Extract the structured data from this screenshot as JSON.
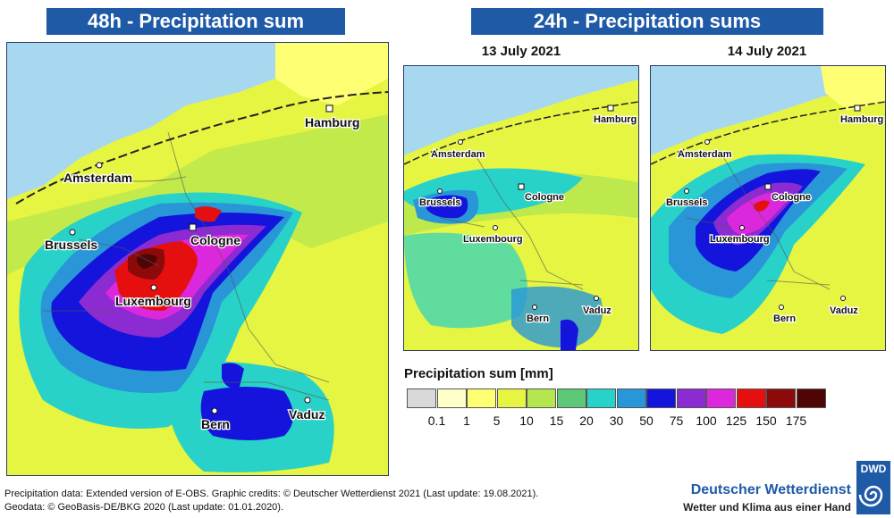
{
  "titles": {
    "left": "48h - Precipitation sum",
    "right": "24h - Precipitation sums"
  },
  "dates": {
    "left_panel": "13 July 2021",
    "right_panel": "14 July 2021"
  },
  "cities": {
    "hamburg": "Hamburg",
    "amsterdam": "Amsterdam",
    "brussels": "Brussels",
    "cologne": "Cologne",
    "luxembourg": "Luxembourg",
    "bern": "Bern",
    "vaduz": "Vaduz"
  },
  "legend": {
    "title": "Precipitation sum [mm]",
    "ticks": [
      "0.1",
      "1",
      "5",
      "10",
      "15",
      "20",
      "30",
      "50",
      "75",
      "100",
      "125",
      "150",
      "175"
    ],
    "colors": [
      "#d9d9d9",
      "#ffffc8",
      "#ffff73",
      "#e6f542",
      "#b4e650",
      "#5cc878",
      "#28d2c8",
      "#2896d7",
      "#1414dc",
      "#8c2bd2",
      "#dc28dc",
      "#e60f0f",
      "#8c0a0a",
      "#500505"
    ]
  },
  "colors": {
    "water": "#a8d8ef",
    "title_bar": "#1f5aa6",
    "dwd_blue": "#1f5aa6"
  },
  "footer": {
    "line1": "Precipitation data: Extended version of E-OBS. Graphic credits: © Deutscher Wetterdienst 2021 (Last update: 19.08.2021).",
    "line2": "Geodata: © GeoBasis-DE/BKG 2020 (Last update: 01.01.2020)."
  },
  "branding": {
    "logo": "DWD",
    "name": "Deutscher Wetterdienst",
    "slogan": "Wetter und Klima aus einer Hand"
  }
}
